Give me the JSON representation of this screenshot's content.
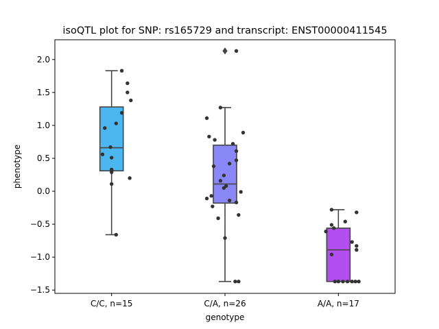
{
  "chart_data": {
    "type": "box",
    "title": "isoQTL plot for SNP: rs165729 and transcript: ENST00000411545",
    "xlabel": "genotype",
    "ylabel": "phenotype",
    "ylim": [
      -1.55,
      2.3
    ],
    "yticks": [
      -1.5,
      -1.0,
      -0.5,
      0.0,
      0.5,
      1.0,
      1.5,
      2.0
    ],
    "ytick_labels": [
      "−1.5",
      "−1.0",
      "−0.5",
      "0.0",
      "0.5",
      "1.0",
      "1.5",
      "2.0"
    ],
    "grid": false,
    "categories": [
      "C/C, n=15",
      "C/A, n=26",
      "A/A, n=17"
    ],
    "colors": [
      "#4cb7ee",
      "#8a88f6",
      "#b34ef0"
    ],
    "boxes": [
      {
        "q1": 0.31,
        "median": 0.66,
        "q3": 1.28,
        "whisker_low": -0.66,
        "whisker_high": 1.83,
        "outliers": []
      },
      {
        "q1": -0.18,
        "median": 0.11,
        "q3": 0.7,
        "whisker_low": -1.37,
        "whisker_high": 1.27,
        "outliers": [
          2.13
        ]
      },
      {
        "q1": -1.37,
        "median": -0.89,
        "q3": -0.56,
        "whisker_low": -1.37,
        "whisker_high": -0.28,
        "outliers": []
      }
    ],
    "points": [
      [
        {
          "x": 0.09,
          "y": 1.83
        },
        {
          "x": 0.14,
          "y": 1.64
        },
        {
          "x": 0.14,
          "y": 1.5
        },
        {
          "x": 0.17,
          "y": 1.38
        },
        {
          "x": 0.09,
          "y": 1.19
        },
        {
          "x": 0.04,
          "y": 1.03
        },
        {
          "x": -0.06,
          "y": 0.96
        },
        {
          "x": -0.01,
          "y": 0.67
        },
        {
          "x": -0.08,
          "y": 0.56
        },
        {
          "x": 0.0,
          "y": 0.51
        },
        {
          "x": 0.0,
          "y": 0.33
        },
        {
          "x": 0.0,
          "y": 0.29
        },
        {
          "x": 0.16,
          "y": 0.2
        },
        {
          "x": 0.0,
          "y": 0.11
        },
        {
          "x": 0.04,
          "y": -0.66
        }
      ],
      [
        {
          "x": 0.1,
          "y": 2.13
        },
        {
          "x": -0.04,
          "y": 1.27
        },
        {
          "x": -0.16,
          "y": 1.11
        },
        {
          "x": 0.16,
          "y": 0.89
        },
        {
          "x": -0.14,
          "y": 0.83
        },
        {
          "x": -0.09,
          "y": 0.78
        },
        {
          "x": 0.07,
          "y": 0.72
        },
        {
          "x": 0.1,
          "y": 0.61
        },
        {
          "x": 0.1,
          "y": 0.47
        },
        {
          "x": 0.04,
          "y": 0.42
        },
        {
          "x": -0.1,
          "y": 0.38
        },
        {
          "x": -0.01,
          "y": 0.24
        },
        {
          "x": -0.04,
          "y": 0.16
        },
        {
          "x": 0.01,
          "y": 0.08
        },
        {
          "x": -0.01,
          "y": 0.05
        },
        {
          "x": 0.14,
          "y": -0.01
        },
        {
          "x": -0.12,
          "y": -0.07
        },
        {
          "x": -0.16,
          "y": -0.11
        },
        {
          "x": 0.04,
          "y": -0.14
        },
        {
          "x": 0.1,
          "y": -0.17
        },
        {
          "x": -0.11,
          "y": -0.23
        },
        {
          "x": 0.12,
          "y": -0.36
        },
        {
          "x": -0.06,
          "y": -0.41
        },
        {
          "x": 0.0,
          "y": -0.71
        },
        {
          "x": 0.09,
          "y": -1.37
        },
        {
          "x": 0.12,
          "y": -1.37
        }
      ],
      [
        {
          "x": -0.06,
          "y": -0.28
        },
        {
          "x": 0.16,
          "y": -0.32
        },
        {
          "x": 0.06,
          "y": -0.46
        },
        {
          "x": -0.06,
          "y": -0.51
        },
        {
          "x": -0.04,
          "y": -0.56
        },
        {
          "x": -0.11,
          "y": -0.61
        },
        {
          "x": 0.12,
          "y": -0.77
        },
        {
          "x": 0.16,
          "y": -0.83
        },
        {
          "x": 0.16,
          "y": -0.89
        },
        {
          "x": -0.06,
          "y": -0.96
        },
        {
          "x": -0.03,
          "y": -1.37
        },
        {
          "x": 0.0,
          "y": -1.37
        },
        {
          "x": 0.04,
          "y": -1.37
        },
        {
          "x": 0.08,
          "y": -1.37
        },
        {
          "x": 0.12,
          "y": -1.37
        },
        {
          "x": 0.15,
          "y": -1.37
        },
        {
          "x": 0.18,
          "y": -1.37
        }
      ]
    ]
  }
}
